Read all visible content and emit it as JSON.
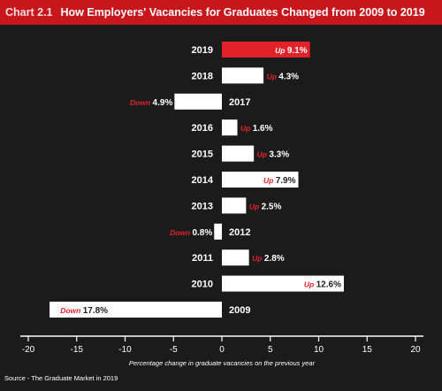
{
  "header": {
    "chart_number": "Chart 2.1",
    "title": "How Employers' Vacancies for Graduates Changed from 2009 to 2019"
  },
  "source": "Source - The Graduate Market in 2019",
  "colors": {
    "background": "#1b1b1b",
    "header": "#c8161d",
    "highlight_bar": "#e3212b",
    "bar": "#ffffff",
    "direction_text": "#e3212b"
  },
  "chart_data": {
    "type": "bar",
    "orientation": "horizontal",
    "title": "How Employers' Vacancies for Graduates Changed from 2009 to 2019",
    "xlabel": "Percentage change in graduate vacancies on the previous year",
    "xlim": [
      -20,
      20
    ],
    "xticks": [
      -20,
      -15,
      -10,
      -5,
      0,
      5,
      10,
      15,
      20
    ],
    "grid": false,
    "categories": [
      "2019",
      "2018",
      "2017",
      "2016",
      "2015",
      "2014",
      "2013",
      "2012",
      "2011",
      "2010",
      "2009"
    ],
    "values": [
      9.1,
      4.3,
      -4.9,
      1.6,
      3.3,
      7.9,
      2.5,
      -0.8,
      2.8,
      12.6,
      -17.8
    ],
    "directions": [
      "Up",
      "Up",
      "Down",
      "Up",
      "Up",
      "Up",
      "Up",
      "Down",
      "Up",
      "Up",
      "Down"
    ],
    "value_labels": [
      "9.1%",
      "4.3%",
      "4.9%",
      "1.6%",
      "3.3%",
      "7.9%",
      "2.5%",
      "0.8%",
      "2.8%",
      "12.6%",
      "17.8%"
    ],
    "highlight_index": 0
  }
}
